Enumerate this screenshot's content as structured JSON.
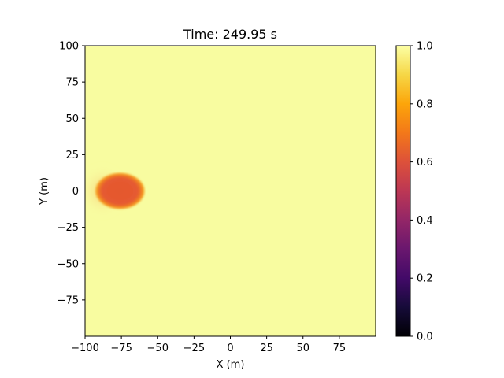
{
  "chart_data": {
    "type": "heatmap",
    "title": "Time: 249.95 s",
    "xlabel": "X (m)",
    "ylabel": "Y (m)",
    "xlim": [
      -100,
      100
    ],
    "ylim": [
      -100,
      100
    ],
    "x_ticks": [
      -100,
      -75,
      -50,
      -25,
      0,
      25,
      50,
      75
    ],
    "x_tick_labels": [
      "−100",
      "−75",
      "−50",
      "−25",
      "0",
      "25",
      "50",
      "75"
    ],
    "y_ticks": [
      100,
      75,
      50,
      25,
      0,
      -25,
      -50,
      -75
    ],
    "y_tick_labels": [
      "100",
      "75",
      "50",
      "25",
      "0",
      "−25",
      "−50",
      "−75"
    ],
    "colormap": "inferno",
    "colorbar": {
      "vmin": 0.0,
      "vmax": 1.0,
      "ticks": [
        0.0,
        0.2,
        0.4,
        0.6,
        0.8,
        1.0
      ],
      "tick_labels": [
        "0.0",
        "0.2",
        "0.4",
        "0.6",
        "0.8",
        "1.0"
      ]
    },
    "background_value": 0.98,
    "features": [
      {
        "name": "depleted ellipse",
        "center_x": -76,
        "center_y": 0,
        "radius_x_m": 17,
        "radius_y_m": 12.5,
        "value": 0.62
      },
      {
        "name": "diffuse halo",
        "center_x": -88,
        "center_y": 0,
        "radius_x_m": 14,
        "radius_y_m": 16,
        "value": 0.9
      }
    ],
    "colors": {
      "background": "#f8fca0",
      "halo": "#f5d67a",
      "rim": "#f8a020",
      "core": "#e55a30"
    }
  }
}
